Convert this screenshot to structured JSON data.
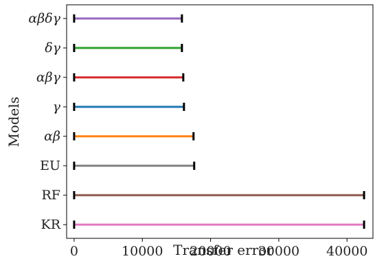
{
  "chart_data": {
    "type": "range",
    "title": "",
    "xlabel": "Transfer error",
    "ylabel": "Models",
    "xlim": [
      -1100,
      43800
    ],
    "xticks": [
      0,
      10000,
      20000,
      30000,
      40000
    ],
    "xtick_labels": [
      "0",
      "10000",
      "20000",
      "30000",
      "40000"
    ],
    "grid": false,
    "categories": [
      "αβδγ",
      "δγ",
      "αβγ",
      "γ",
      "αβ",
      "EU",
      "RF",
      "KR"
    ],
    "series": [
      {
        "category": "αβδγ",
        "min": 0,
        "max": 15800,
        "color": "#9467bd"
      },
      {
        "category": "δγ",
        "min": 0,
        "max": 15800,
        "color": "#2ca02c"
      },
      {
        "category": "αβγ",
        "min": 0,
        "max": 16000,
        "color": "#d62728"
      },
      {
        "category": "γ",
        "min": 0,
        "max": 16100,
        "color": "#1f77b4"
      },
      {
        "category": "αβ",
        "min": 0,
        "max": 17500,
        "color": "#ff7f0e"
      },
      {
        "category": "EU",
        "min": 0,
        "max": 17600,
        "color": "#7f7f7f"
      },
      {
        "category": "RF",
        "min": 0,
        "max": 42500,
        "color": "#8c564b"
      },
      {
        "category": "KR",
        "min": 0,
        "max": 42500,
        "color": "#e377c2"
      }
    ]
  }
}
